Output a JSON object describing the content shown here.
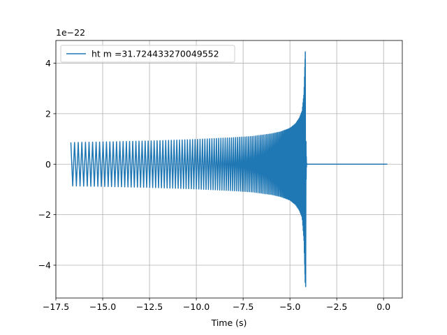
{
  "chart_data": {
    "type": "line",
    "title": "",
    "xlabel": "Time (s)",
    "ylabel": "",
    "y_offset_label": "1e−22",
    "y_multiplier": 1e-22,
    "xlim": [
      -17.5,
      1.0
    ],
    "ylim": [
      -5.3,
      4.9
    ],
    "x_ticks": [
      -17.5,
      -15.0,
      -12.5,
      -10.0,
      -7.5,
      -5.0,
      -2.5,
      0.0
    ],
    "x_tick_labels": [
      "−17.5",
      "−15.0",
      "−12.5",
      "−10.0",
      "−7.5",
      "−5.0",
      "−2.5",
      "0.0"
    ],
    "y_ticks": [
      -4,
      -2,
      0,
      2,
      4
    ],
    "y_tick_labels": [
      "−4",
      "−2",
      "0",
      "2",
      "4"
    ],
    "grid": true,
    "legend_position": "top-left",
    "series": [
      {
        "name": "ht m =31.724433270049552",
        "color": "#1f77b4",
        "kind": "chirp-oscillation",
        "envelope": {
          "t": [
            -16.7,
            -15.0,
            -12.5,
            -10.0,
            -8.0,
            -7.0,
            -6.0,
            -5.5,
            -5.0,
            -4.7,
            -4.5,
            -4.35,
            -4.25,
            -4.18
          ],
          "upper": [
            0.86,
            0.88,
            0.92,
            0.98,
            1.05,
            1.1,
            1.2,
            1.28,
            1.42,
            1.6,
            1.82,
            2.1,
            2.8,
            4.45
          ],
          "lower": [
            -0.86,
            -0.88,
            -0.92,
            -0.98,
            -1.05,
            -1.1,
            -1.2,
            -1.28,
            -1.42,
            -1.6,
            -1.82,
            -2.1,
            -3.0,
            -4.85
          ]
        },
        "ringdown_end": -4.1,
        "flat_segment": {
          "x": [
            -4.1,
            0.2
          ],
          "y": [
            0.0,
            0.0
          ]
        }
      }
    ]
  }
}
